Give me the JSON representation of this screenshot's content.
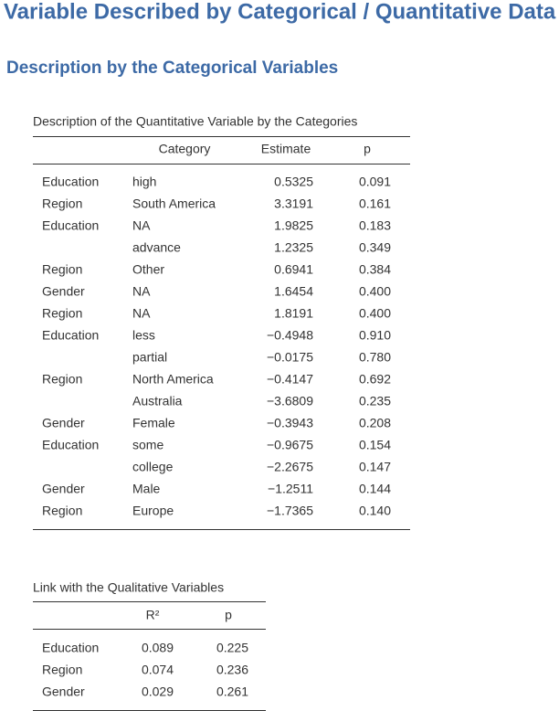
{
  "header": {
    "title": "Variable Described by Categorical / Quantitative Data",
    "subtitle": "Description by the Categorical Variables"
  },
  "table1": {
    "caption": "Description of the Quantitative Variable by the Categories",
    "columns": [
      "Category",
      "Estimate",
      "p"
    ],
    "rows": [
      [
        "Education",
        "high",
        "0.5325",
        "0.091"
      ],
      [
        "Region",
        "South America",
        "3.3191",
        "0.161"
      ],
      [
        "Education",
        "NA",
        "1.9825",
        "0.183"
      ],
      [
        null,
        "advance",
        "1.2325",
        "0.349"
      ],
      [
        "Region",
        "Other",
        "0.6941",
        "0.384"
      ],
      [
        "Gender",
        "NA",
        "1.6454",
        "0.400"
      ],
      [
        "Region",
        "NA",
        "1.8191",
        "0.400"
      ],
      [
        "Education",
        "less",
        "−0.4948",
        "0.910"
      ],
      [
        null,
        "partial",
        "−0.0175",
        "0.780"
      ],
      [
        "Region",
        "North America",
        "−0.4147",
        "0.692"
      ],
      [
        null,
        "Australia",
        "−3.6809",
        "0.235"
      ],
      [
        "Gender",
        "Female",
        "−0.3943",
        "0.208"
      ],
      [
        "Education",
        "some",
        "−0.9675",
        "0.154"
      ],
      [
        null,
        "college",
        "−2.2675",
        "0.147"
      ],
      [
        "Gender",
        "Male",
        "−1.2511",
        "0.144"
      ],
      [
        "Region",
        "Europe",
        "−1.7365",
        "0.140"
      ]
    ]
  },
  "table2": {
    "caption": "Link with the Qualitative Variables",
    "columns": [
      "R²",
      "p"
    ],
    "rows": [
      [
        "Education",
        "0.089",
        "0.225"
      ],
      [
        "Region",
        "0.074",
        "0.236"
      ],
      [
        "Gender",
        "0.029",
        "0.261"
      ]
    ]
  }
}
